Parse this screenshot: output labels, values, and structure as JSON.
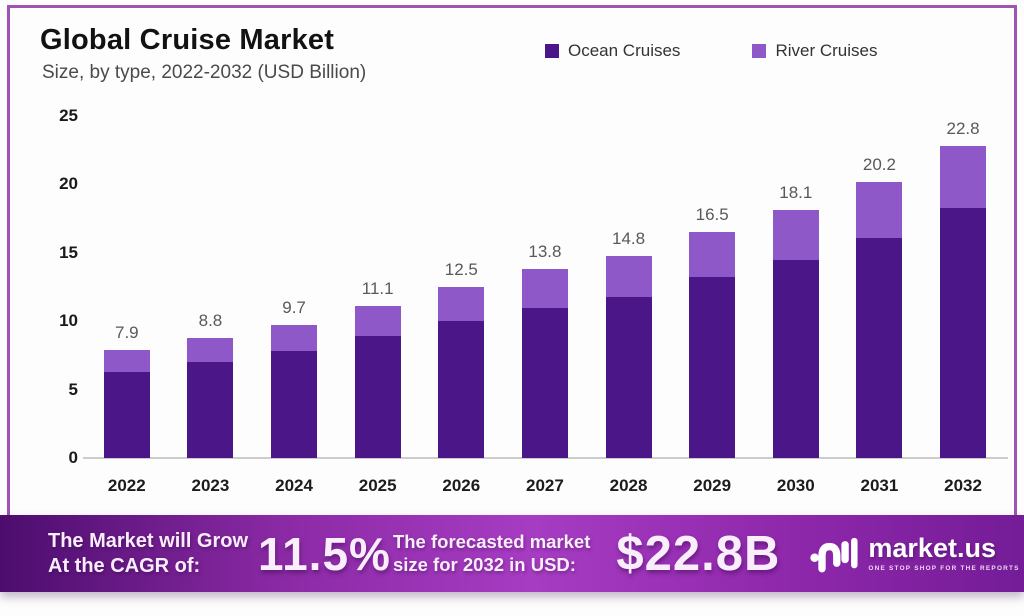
{
  "header": {
    "title": "Global Cruise Market",
    "subtitle": "Size, by type, 2022-2032 (USD Billion)"
  },
  "legend": [
    {
      "label": "Ocean Cruises",
      "color": "#4b1687"
    },
    {
      "label": "River Cruises",
      "color": "#8e58c8"
    }
  ],
  "chart_data": {
    "type": "bar",
    "stacked": true,
    "title": "Global Cruise Market",
    "subtitle": "Size, by type, 2022-2032 (USD Billion)",
    "xlabel": "",
    "ylabel": "",
    "ylim": [
      0,
      25
    ],
    "yticks": [
      0,
      5,
      10,
      15,
      20,
      25
    ],
    "grid": false,
    "legend_position": "top-right",
    "categories": [
      "2022",
      "2023",
      "2024",
      "2025",
      "2026",
      "2027",
      "2028",
      "2029",
      "2030",
      "2031",
      "2032"
    ],
    "series": [
      {
        "name": "Ocean Cruises",
        "color": "#4b1687",
        "values": [
          6.3,
          7.0,
          7.8,
          8.9,
          10.0,
          11.0,
          11.8,
          13.2,
          14.5,
          16.1,
          18.3
        ]
      },
      {
        "name": "River Cruises",
        "color": "#8e58c8",
        "values": [
          1.6,
          1.8,
          1.9,
          2.2,
          2.5,
          2.8,
          3.0,
          3.3,
          3.6,
          4.1,
          4.5
        ]
      }
    ],
    "totals": [
      7.9,
      8.8,
      9.7,
      11.1,
      12.5,
      13.8,
      14.8,
      16.5,
      18.1,
      20.2,
      22.8
    ],
    "total_labels": [
      "7.9",
      "8.8",
      "9.7",
      "11.1",
      "12.5",
      "13.8",
      "14.8",
      "16.5",
      "18.1",
      "20.2",
      "22.8"
    ]
  },
  "banner": {
    "cagr_line1": "The Market will Grow",
    "cagr_line2": "At the CAGR of:",
    "cagr_value": "11.5%",
    "forecast_line1": "The forecasted market",
    "forecast_line2": "size for 2032 in USD:",
    "forecast_value": "$22.8B",
    "logo_name": "market.us",
    "logo_tagline": "ONE STOP SHOP FOR THE REPORTS"
  }
}
